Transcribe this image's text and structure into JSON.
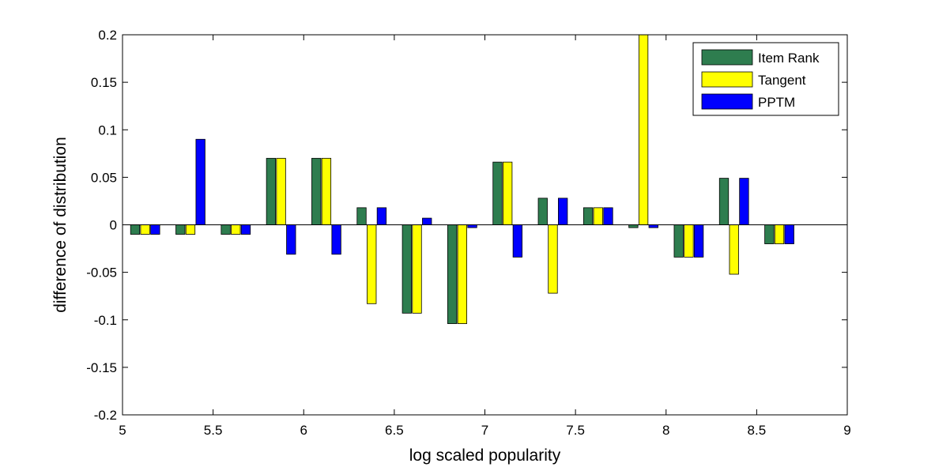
{
  "chart_data": {
    "type": "bar",
    "title": "",
    "xlabel": "log scaled popularity",
    "ylabel": "difference of distribution",
    "xlim": [
      5,
      9
    ],
    "ylim": [
      -0.2,
      0.2
    ],
    "xticks": [
      5,
      5.5,
      6,
      6.5,
      7,
      7.5,
      8,
      8.5,
      9
    ],
    "xtick_labels": [
      "5",
      "5.5",
      "6",
      "6.5",
      "7",
      "7.5",
      "8",
      "8.5",
      "9"
    ],
    "yticks": [
      -0.2,
      -0.15,
      -0.1,
      -0.05,
      0,
      0.05,
      0.1,
      0.15,
      0.2
    ],
    "ytick_labels": [
      "-0.2",
      "-0.15",
      "-0.1",
      "-0.05",
      "0",
      "0.05",
      "0.1",
      "0.15",
      "0.2"
    ],
    "grid": false,
    "legend_position": "top-right",
    "x": [
      5.125,
      5.375,
      5.625,
      5.875,
      6.125,
      6.375,
      6.625,
      6.875,
      7.125,
      7.375,
      7.625,
      7.875,
      8.125,
      8.375,
      8.625
    ],
    "series": [
      {
        "name": "Item Rank",
        "color": "#2e7d4f",
        "values": [
          -0.01,
          -0.01,
          -0.01,
          0.07,
          0.07,
          0.018,
          -0.093,
          -0.104,
          0.066,
          0.028,
          0.018,
          -0.003,
          -0.034,
          0.049,
          -0.02
        ]
      },
      {
        "name": "Tangent",
        "color": "#ffff00",
        "values": [
          -0.01,
          -0.01,
          -0.01,
          0.07,
          0.07,
          -0.083,
          -0.093,
          -0.104,
          0.066,
          -0.072,
          0.018,
          0.2,
          -0.034,
          -0.052,
          -0.02
        ]
      },
      {
        "name": "PPTM",
        "color": "#0000ff",
        "values": [
          -0.01,
          0.09,
          -0.01,
          -0.031,
          -0.031,
          0.018,
          0.007,
          -0.003,
          -0.034,
          0.028,
          0.018,
          -0.003,
          -0.034,
          0.049,
          -0.02
        ]
      }
    ]
  }
}
